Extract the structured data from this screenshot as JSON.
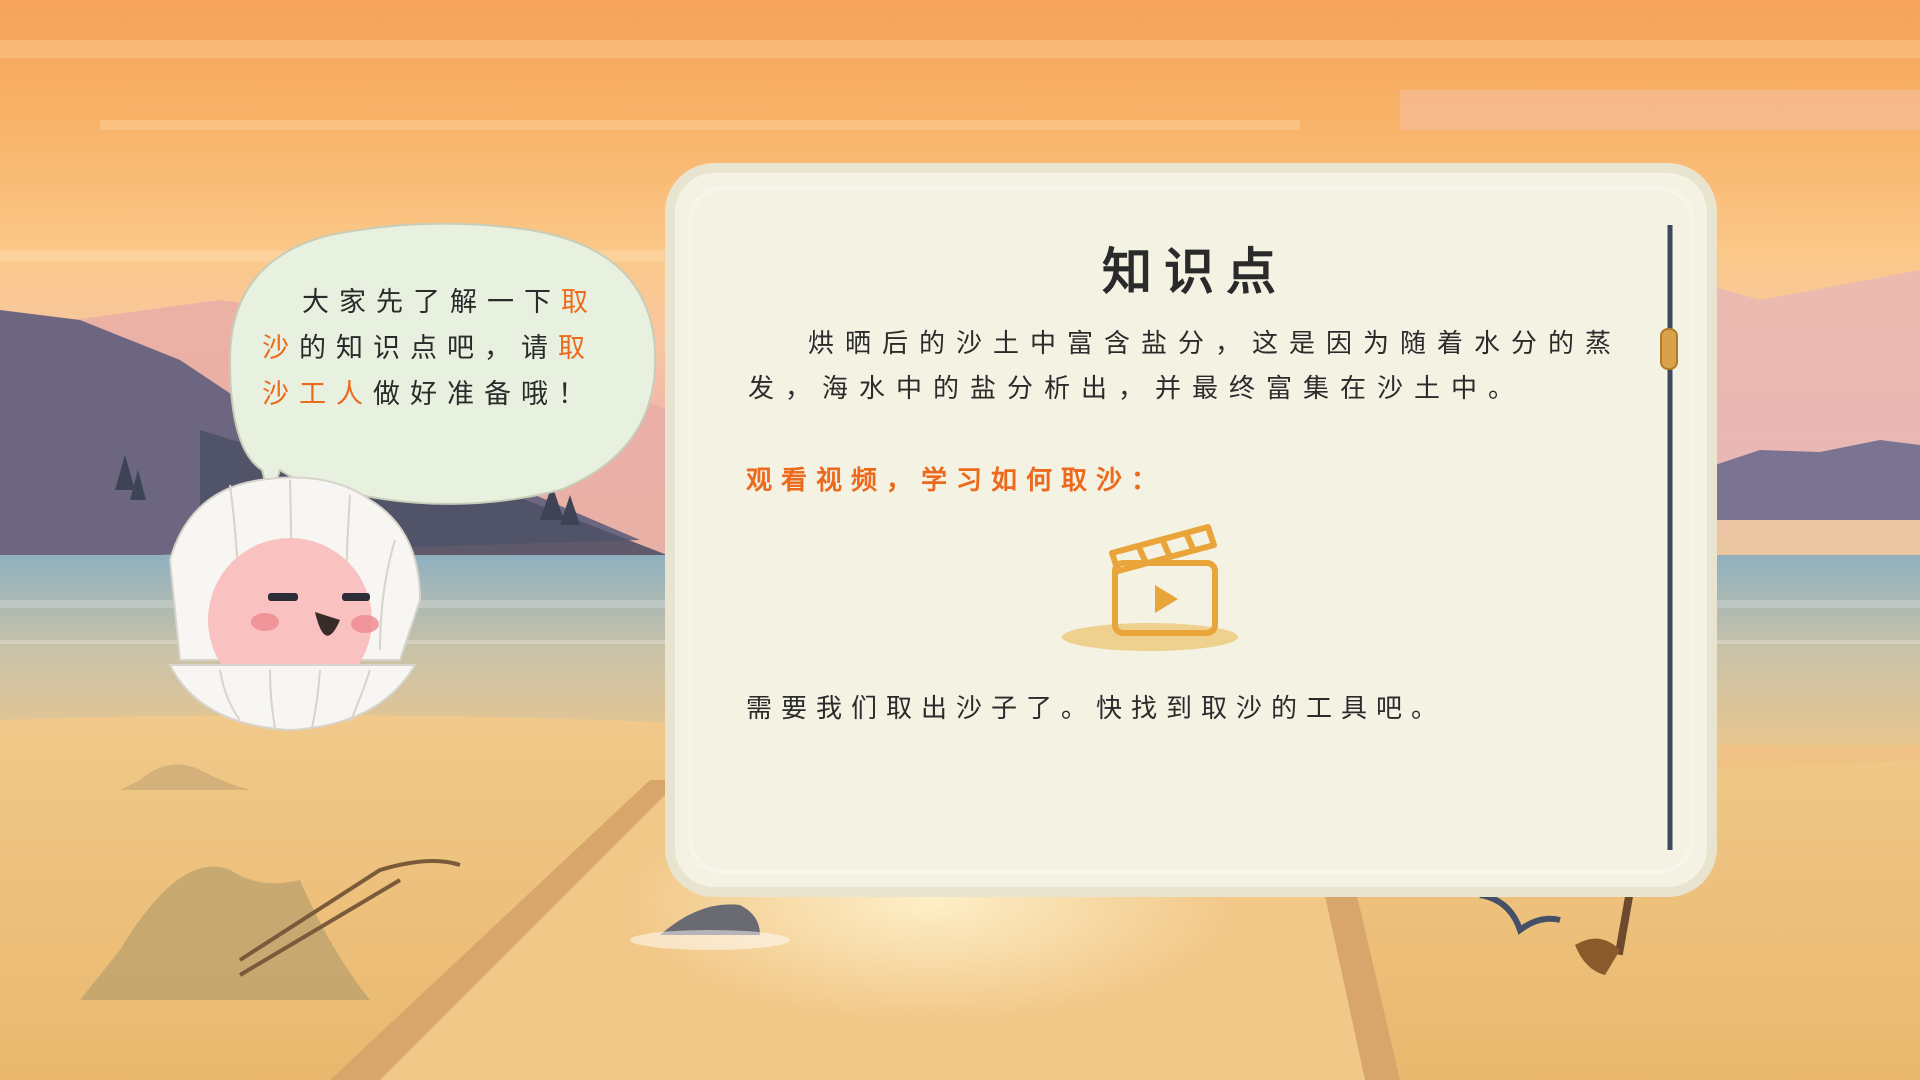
{
  "bubble": {
    "line_parts": [
      "大家先了解一下",
      "取沙",
      "的知识点吧，请",
      "取沙工人",
      "做好准备哦！"
    ]
  },
  "card": {
    "title": "知识点",
    "body": "烘晒后的沙土中富含盐分，这是因为随着水分的蒸发，海水中的盐分析出，并最终富集在沙土中。",
    "video_prompt": "观看视频，学习如何取沙：",
    "footer": "需要我们取出沙子了。快找到取沙的工具吧。"
  },
  "icons": {
    "video": "clapperboard-play-icon",
    "mascot": "pearl-shell-character",
    "tool_shovel": "shovel-icon",
    "tool_rake": "rake-icon"
  },
  "colors": {
    "highlight": "#ec6a1e",
    "card_bg": "#f4f2e2",
    "scroll_bar": "#3b4a5e",
    "scroll_handle": "#d9a14a",
    "text": "#2b2b2b"
  }
}
